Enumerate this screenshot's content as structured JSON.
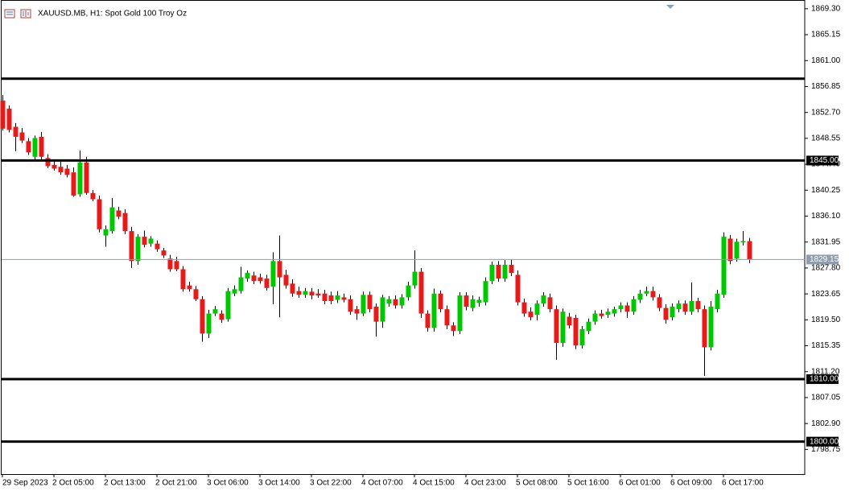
{
  "chart_data": {
    "type": "candlestick",
    "title": "XAUUSD.MB, H1:  Spot Gold 100 Troy Oz",
    "up_color": "#00c800",
    "down_color": "#e41b1b",
    "wick_color": "#000000",
    "ylim": [
      1794.8,
      1870.7
    ],
    "yticks": [
      {
        "value": 1869.3,
        "label": "1869.30"
      },
      {
        "value": 1865.15,
        "label": "1865.15"
      },
      {
        "value": 1861,
        "label": "1861.00"
      },
      {
        "value": 1856.85,
        "label": "1856.85"
      },
      {
        "value": 1852.7,
        "label": "1852.70"
      },
      {
        "value": 1848.55,
        "label": "1848.55"
      },
      {
        "value": 1844.4,
        "label": "1844.40"
      },
      {
        "value": 1840.25,
        "label": "1840.25"
      },
      {
        "value": 1836.1,
        "label": "1836.10"
      },
      {
        "value": 1831.95,
        "label": "1831.95"
      },
      {
        "value": 1827.8,
        "label": "1827.80"
      },
      {
        "value": 1823.65,
        "label": "1823.65"
      },
      {
        "value": 1819.5,
        "label": "1819.50"
      },
      {
        "value": 1815.35,
        "label": "1815.35"
      },
      {
        "value": 1811.2,
        "label": "1811.20"
      },
      {
        "value": 1807.05,
        "label": "1807.05"
      },
      {
        "value": 1802.9,
        "label": "1802.90"
      },
      {
        "value": 1798.75,
        "label": "1798.75"
      }
    ],
    "horizontal_lines": [
      {
        "value": 1858.1
      },
      {
        "value": 1845,
        "label": "1845.00"
      },
      {
        "value": 1810,
        "label": "1810.00"
      },
      {
        "value": 1800,
        "label": "1800.00"
      }
    ],
    "bid_line": {
      "value": 1829.15,
      "label": "1829.15",
      "color": "#8e9eae"
    },
    "categories": [
      "29 Sep 2023",
      null,
      null,
      null,
      null,
      null,
      null,
      null,
      "2 Oct 05:00",
      null,
      null,
      null,
      null,
      null,
      null,
      null,
      "2 Oct 13:00",
      null,
      null,
      null,
      null,
      null,
      null,
      null,
      "2 Oct 21:00",
      null,
      null,
      null,
      null,
      null,
      null,
      null,
      "3 Oct 06:00",
      null,
      null,
      null,
      null,
      null,
      null,
      null,
      "3 Oct 14:00",
      null,
      null,
      null,
      null,
      null,
      null,
      null,
      "3 Oct 22:00",
      null,
      null,
      null,
      null,
      null,
      null,
      null,
      "4 Oct 07:00",
      null,
      null,
      null,
      null,
      null,
      null,
      null,
      "4 Oct 15:00",
      null,
      null,
      null,
      null,
      null,
      null,
      null,
      "4 Oct 23:00",
      null,
      null,
      null,
      null,
      null,
      null,
      null,
      "5 Oct 08:00",
      null,
      null,
      null,
      null,
      null,
      null,
      null,
      "5 Oct 16:00",
      null,
      null,
      null,
      null,
      null,
      null,
      null,
      "6 Oct 01:00",
      null,
      null,
      null,
      null,
      null,
      null,
      null,
      "6 Oct 09:00",
      null,
      null,
      null,
      null,
      null,
      null,
      null,
      "6 Oct 17:00",
      null,
      null,
      null,
      null
    ],
    "open": [
      1854.6,
      1853.3,
      1850.4,
      1849.5,
      1848.1,
      1845.6,
      1848.8,
      1845.4,
      1844.3,
      1844.0,
      1843.7,
      1843.1,
      1839.6,
      1844.7,
      1839.8,
      1838.8,
      1833.0,
      1833.7,
      1837.0,
      1836.6,
      1833.7,
      1828.9,
      1832.8,
      1831.7,
      1831.7,
      1830.6,
      1829.3,
      1828.9,
      1827.6,
      1825.0,
      1824.4,
      1822.8,
      1817.3,
      1820.5,
      1820.5,
      1819.6,
      1823.7,
      1824.1,
      1826.1,
      1826.6,
      1826.3,
      1826.1,
      1824.8,
      1828.9,
      1826.7,
      1825.3,
      1824.1,
      1823.5,
      1824.0,
      1823.7,
      1823.7,
      1823.4,
      1822.7,
      1823.1,
      1822.8,
      1821.2,
      1820.5,
      1823.5,
      1821.6,
      1819.2,
      1822.1,
      1822.8,
      1821.8,
      1823.1,
      1825.0,
      1827.2,
      1820.5,
      1818.2,
      1823.7,
      1821.2,
      1818.6,
      1817.7,
      1823.4,
      1821.4,
      1822.2,
      1822.3,
      1825.7,
      1828.3,
      1826.1,
      1828.3,
      1826.7,
      1822.3,
      1820.8,
      1820.3,
      1822.1,
      1823.1,
      1821.2,
      1815.8,
      1820.0,
      1819.8,
      1815.4,
      1817.7,
      1819.2,
      1820.5,
      1820.3,
      1820.5,
      1821.2,
      1821.8,
      1820.8,
      1822.7,
      1823.7,
      1824.1,
      1823.1,
      1821.4,
      1819.9,
      1821.2,
      1822.1,
      1820.8,
      1822.5,
      1821.2,
      1815.1,
      1821.2,
      1823.5,
      1832.5,
      1829.3,
      1831.9,
      1832.1
    ],
    "high": [
      1855.5,
      1853.8,
      1851.0,
      1850.2,
      1848.6,
      1849.0,
      1849.6,
      1846.0,
      1845.2,
      1844.8,
      1844.3,
      1843.9,
      1846.6,
      1845.6,
      1840.3,
      1839.4,
      1834.6,
      1839.0,
      1837.6,
      1837.2,
      1834.4,
      1833.2,
      1833.8,
      1832.9,
      1832.2,
      1831.0,
      1829.9,
      1829.6,
      1828.1,
      1825.6,
      1824.9,
      1823.3,
      1821.1,
      1821.7,
      1821.0,
      1824.6,
      1825.0,
      1828.0,
      1827.4,
      1827.2,
      1826.9,
      1826.7,
      1830.3,
      1833.0,
      1827.5,
      1826.0,
      1824.8,
      1824.6,
      1824.6,
      1824.4,
      1824.3,
      1824.0,
      1824.1,
      1823.7,
      1823.4,
      1821.7,
      1824.0,
      1824.0,
      1822.1,
      1823.5,
      1823.3,
      1823.4,
      1823.6,
      1825.6,
      1830.6,
      1827.8,
      1821.0,
      1824.5,
      1824.2,
      1821.8,
      1819.1,
      1823.9,
      1823.9,
      1823.4,
      1823.2,
      1826.3,
      1828.8,
      1828.9,
      1829.1,
      1829.2,
      1827.4,
      1822.9,
      1821.5,
      1822.6,
      1823.9,
      1823.7,
      1821.8,
      1821.3,
      1820.6,
      1820.3,
      1818.5,
      1819.7,
      1821.0,
      1821.1,
      1821.3,
      1821.6,
      1822.3,
      1822.3,
      1823.3,
      1824.3,
      1824.8,
      1824.8,
      1823.6,
      1822.0,
      1822.1,
      1822.6,
      1822.6,
      1825.5,
      1823.0,
      1821.8,
      1822.5,
      1824.3,
      1833.5,
      1833.1,
      1832.5,
      1833.7,
      1832.6
    ],
    "low": [
      1849.8,
      1849.5,
      1846.5,
      1847.8,
      1845.9,
      1845.2,
      1845.2,
      1843.8,
      1843.4,
      1842.7,
      1842.3,
      1839.2,
      1839.2,
      1839.5,
      1838.5,
      1833.5,
      1831.2,
      1833.3,
      1835.6,
      1833.2,
      1827.8,
      1828.3,
      1831.1,
      1831.2,
      1830.4,
      1829.4,
      1827.2,
      1827.3,
      1824.0,
      1824.0,
      1822.5,
      1816.0,
      1816.6,
      1820.1,
      1819.0,
      1819.2,
      1823.3,
      1823.7,
      1825.6,
      1825.2,
      1825.3,
      1824.2,
      1822.0,
      1819.9,
      1824.5,
      1823.2,
      1823.0,
      1823.0,
      1822.8,
      1823.0,
      1822.0,
      1822.0,
      1822.2,
      1822.3,
      1820.3,
      1819.5,
      1820.1,
      1820.7,
      1816.8,
      1818.2,
      1821.6,
      1821.3,
      1821.3,
      1822.6,
      1824.5,
      1819.8,
      1817.6,
      1817.6,
      1820.7,
      1818.0,
      1816.9,
      1817.2,
      1821.0,
      1820.9,
      1821.6,
      1821.8,
      1825.2,
      1825.6,
      1825.6,
      1826.5,
      1821.8,
      1820.0,
      1819.4,
      1819.4,
      1821.6,
      1820.7,
      1813.1,
      1815.2,
      1818.1,
      1814.8,
      1814.9,
      1817.2,
      1818.7,
      1819.7,
      1819.8,
      1820.0,
      1820.7,
      1819.8,
      1820.3,
      1822.2,
      1823.3,
      1822.6,
      1820.9,
      1818.9,
      1819.4,
      1820.7,
      1820.3,
      1820.3,
      1820.7,
      1810.5,
      1814.6,
      1820.7,
      1823.0,
      1828.4,
      1828.8,
      1831.4,
      1828.6
    ],
    "close": [
      1850.1,
      1849.9,
      1848.8,
      1848.2,
      1846.3,
      1848.6,
      1845.6,
      1844.1,
      1843.7,
      1843.1,
      1842.7,
      1839.4,
      1844.7,
      1839.8,
      1838.8,
      1834.0,
      1834.0,
      1837.5,
      1836.0,
      1833.7,
      1828.9,
      1832.8,
      1831.5,
      1832.5,
      1830.8,
      1829.8,
      1827.6,
      1827.6,
      1824.4,
      1824.4,
      1822.8,
      1817.3,
      1820.5,
      1821.2,
      1819.5,
      1824.1,
      1824.4,
      1826.3,
      1827.0,
      1825.7,
      1825.7,
      1824.6,
      1828.9,
      1826.3,
      1825.0,
      1823.7,
      1823.5,
      1824.1,
      1823.4,
      1823.4,
      1822.5,
      1822.5,
      1823.4,
      1822.7,
      1820.8,
      1820.5,
      1823.5,
      1821.2,
      1819.2,
      1823.1,
      1822.8,
      1821.8,
      1823.1,
      1825.0,
      1827.2,
      1820.5,
      1818.2,
      1823.7,
      1821.2,
      1818.6,
      1817.7,
      1823.4,
      1821.6,
      1822.8,
      1822.7,
      1825.7,
      1828.3,
      1826.1,
      1828.3,
      1827.0,
      1822.3,
      1820.5,
      1819.9,
      1822.1,
      1823.4,
      1821.2,
      1815.8,
      1820.8,
      1818.6,
      1815.4,
      1818.0,
      1819.2,
      1820.5,
      1820.1,
      1820.8,
      1821.2,
      1821.8,
      1820.8,
      1822.8,
      1823.7,
      1824.1,
      1823.1,
      1821.4,
      1819.5,
      1821.6,
      1822.1,
      1820.8,
      1822.5,
      1821.2,
      1815.1,
      1821.6,
      1823.7,
      1832.8,
      1828.9,
      1832.0,
      1832.1,
      1829.2
    ]
  }
}
